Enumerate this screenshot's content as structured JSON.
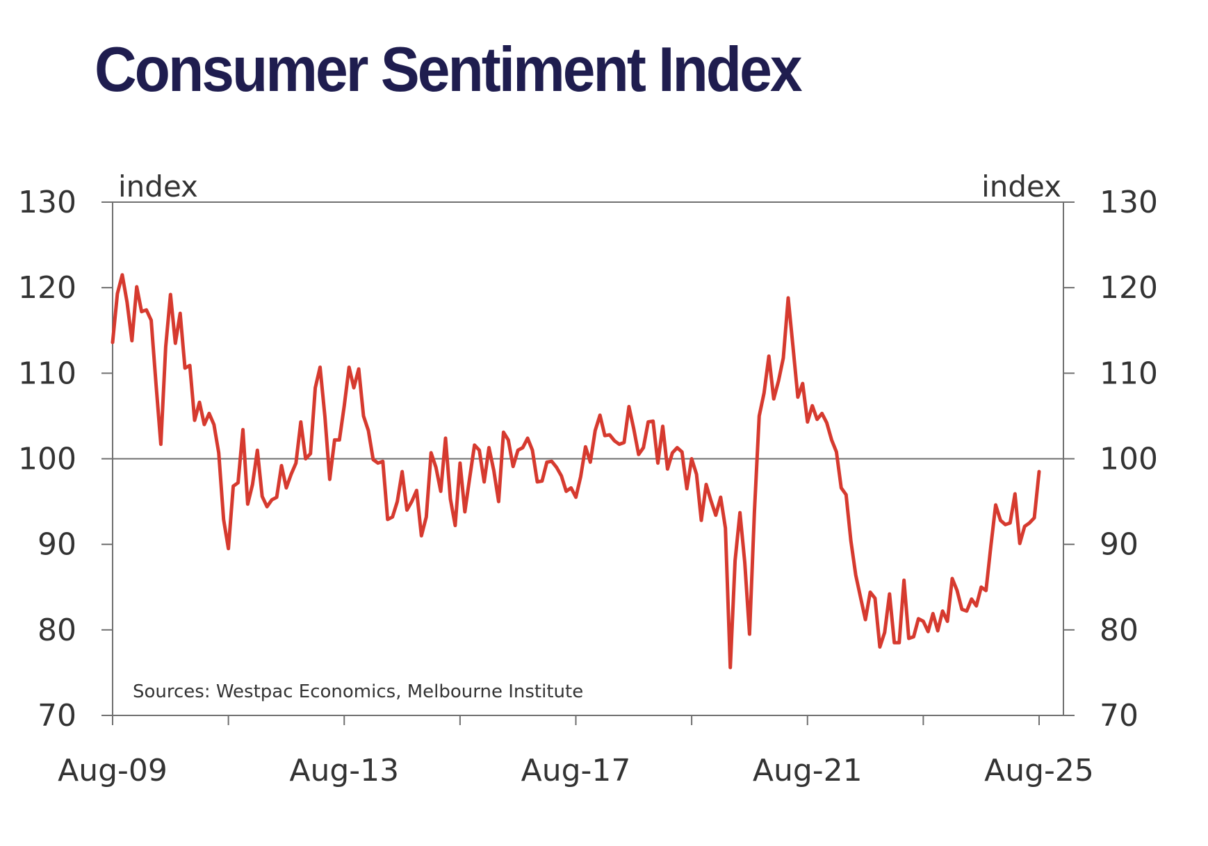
{
  "title": "Consumer Sentiment Index",
  "chart_data": {
    "type": "line",
    "title": "Consumer Sentiment Index",
    "ylabel_left": "index",
    "ylabel_right": "index",
    "source": "Sources: Westpac Economics, Melbourne Institute",
    "ylim": [
      70,
      130
    ],
    "y_ticks": [
      70,
      80,
      90,
      100,
      110,
      120,
      130
    ],
    "reference_line": 100,
    "x_tick_labels": [
      "Aug-09",
      "Aug-13",
      "Aug-17",
      "Aug-21",
      "Aug-25"
    ],
    "x_range": [
      "2009-08",
      "2025-08"
    ],
    "grid": false,
    "line_color": "#d63a2f",
    "series": [
      {
        "x": [
          "2009-08",
          "2009-09",
          "2009-10",
          "2009-11",
          "2009-12",
          "2010-01",
          "2010-02",
          "2010-03",
          "2010-04",
          "2010-05",
          "2010-06",
          "2010-07",
          "2010-08",
          "2010-09",
          "2010-10",
          "2010-11",
          "2010-12",
          "2011-01",
          "2011-02",
          "2011-03",
          "2011-04",
          "2011-05",
          "2011-06",
          "2011-07",
          "2011-08",
          "2011-09",
          "2011-10",
          "2011-11",
          "2011-12",
          "2012-01",
          "2012-02",
          "2012-03",
          "2012-04",
          "2012-05",
          "2012-06",
          "2012-07",
          "2012-08",
          "2012-09",
          "2012-10",
          "2012-11",
          "2012-12",
          "2013-01",
          "2013-02",
          "2013-03",
          "2013-04",
          "2013-05",
          "2013-06",
          "2013-07",
          "2013-08",
          "2013-09",
          "2013-10",
          "2013-11",
          "2013-12",
          "2014-01",
          "2014-02",
          "2014-03",
          "2014-04",
          "2014-05",
          "2014-06",
          "2014-07",
          "2014-08",
          "2014-09",
          "2014-10",
          "2014-11",
          "2014-12",
          "2015-01",
          "2015-02",
          "2015-03",
          "2015-04",
          "2015-05",
          "2015-06",
          "2015-07",
          "2015-08",
          "2015-09",
          "2015-10",
          "2015-11",
          "2015-12",
          "2016-01",
          "2016-02",
          "2016-03",
          "2016-04",
          "2016-05",
          "2016-06",
          "2016-07",
          "2016-08",
          "2016-09",
          "2016-10",
          "2016-11",
          "2016-12",
          "2017-01",
          "2017-02",
          "2017-03",
          "2017-04",
          "2017-05",
          "2017-06",
          "2017-07",
          "2017-08",
          "2017-09",
          "2017-10",
          "2017-11",
          "2017-12",
          "2018-01",
          "2018-02",
          "2018-03",
          "2018-04",
          "2018-05",
          "2018-06",
          "2018-07",
          "2018-08",
          "2018-09",
          "2018-10",
          "2018-11",
          "2018-12",
          "2019-01",
          "2019-02",
          "2019-03",
          "2019-04",
          "2019-05",
          "2019-06",
          "2019-07",
          "2019-08",
          "2019-09",
          "2019-10",
          "2019-11",
          "2019-12",
          "2020-01",
          "2020-02",
          "2020-03",
          "2020-04",
          "2020-05",
          "2020-06",
          "2020-07",
          "2020-08",
          "2020-09",
          "2020-10",
          "2020-11",
          "2020-12",
          "2021-01",
          "2021-02",
          "2021-03",
          "2021-04",
          "2021-05",
          "2021-06",
          "2021-07",
          "2021-08",
          "2021-09",
          "2021-10",
          "2021-11",
          "2021-12",
          "2022-01",
          "2022-02",
          "2022-03",
          "2022-04",
          "2022-05",
          "2022-06",
          "2022-07",
          "2022-08",
          "2022-09",
          "2022-10",
          "2022-11",
          "2022-12",
          "2023-01",
          "2023-02",
          "2023-03",
          "2023-04",
          "2023-05",
          "2023-06",
          "2023-07",
          "2023-08",
          "2023-09",
          "2023-10",
          "2023-11",
          "2023-12",
          "2024-01",
          "2024-02",
          "2024-03",
          "2024-04",
          "2024-05",
          "2024-06",
          "2024-07",
          "2024-08",
          "2024-09",
          "2024-10",
          "2024-11",
          "2024-12",
          "2025-01",
          "2025-02",
          "2025-03",
          "2025-04",
          "2025-05",
          "2025-06",
          "2025-07",
          "2025-08"
        ],
        "y": [
          113.6,
          119.3,
          121.5,
          118.3,
          113.8,
          120.1,
          117.2,
          117.4,
          116.2,
          108.7,
          101.7,
          113.1,
          119.2,
          113.5,
          117.0,
          110.6,
          110.9,
          104.5,
          106.6,
          104.0,
          105.3,
          104.0,
          100.7,
          92.9,
          89.5,
          96.8,
          97.2,
          103.4,
          94.7,
          97.0,
          101.0,
          95.6,
          94.4,
          95.2,
          95.5,
          99.2,
          96.6,
          98.2,
          99.5,
          104.3,
          100.0,
          100.6,
          108.3,
          110.7,
          104.9,
          97.6,
          102.2,
          102.2,
          106.2,
          110.7,
          108.3,
          110.5,
          105.0,
          103.3,
          99.9,
          99.5,
          99.7,
          92.9,
          93.2,
          95.0,
          98.5,
          94.0,
          95.0,
          96.3,
          91.0,
          93.2,
          100.7,
          99.0,
          96.2,
          102.4,
          95.3,
          92.2,
          99.5,
          93.8,
          97.8,
          101.6,
          101.0,
          97.3,
          101.3,
          98.6,
          95.0,
          103.1,
          102.2,
          99.1,
          101.0,
          101.3,
          102.4,
          101.0,
          97.3,
          97.4,
          99.6,
          99.7,
          99.0,
          98.0,
          96.2,
          96.6,
          95.5,
          97.9,
          101.4,
          99.6,
          103.3,
          105.1,
          102.7,
          102.8,
          102.1,
          101.7,
          101.9,
          106.1,
          103.5,
          100.5,
          101.3,
          104.3,
          104.4,
          99.5,
          103.8,
          98.8,
          100.7,
          101.3,
          100.8,
          96.5,
          100.0,
          98.2,
          92.8,
          97.0,
          95.1,
          93.4,
          95.5,
          91.9,
          75.6,
          88.1,
          93.7,
          87.9,
          79.5,
          93.8,
          105.0,
          107.7,
          112.0,
          107.0,
          109.1,
          111.8,
          118.8,
          113.1,
          107.2,
          108.8,
          104.3,
          106.2,
          104.6,
          105.3,
          104.2,
          102.2,
          100.8,
          96.6,
          95.8,
          90.4,
          86.4,
          83.8,
          81.2,
          84.4,
          83.7,
          78.0,
          79.7,
          84.2,
          78.5,
          78.5,
          85.8,
          79.0,
          79.2,
          81.3,
          81.0,
          79.8,
          81.9,
          79.9,
          82.2,
          81.0,
          86.0,
          84.6,
          82.4,
          82.2,
          83.6,
          82.8,
          85.0,
          84.6,
          89.8,
          94.6,
          92.8,
          92.3,
          92.5,
          95.9,
          90.1,
          92.1,
          92.5,
          93.1,
          98.5
        ]
      }
    ]
  }
}
